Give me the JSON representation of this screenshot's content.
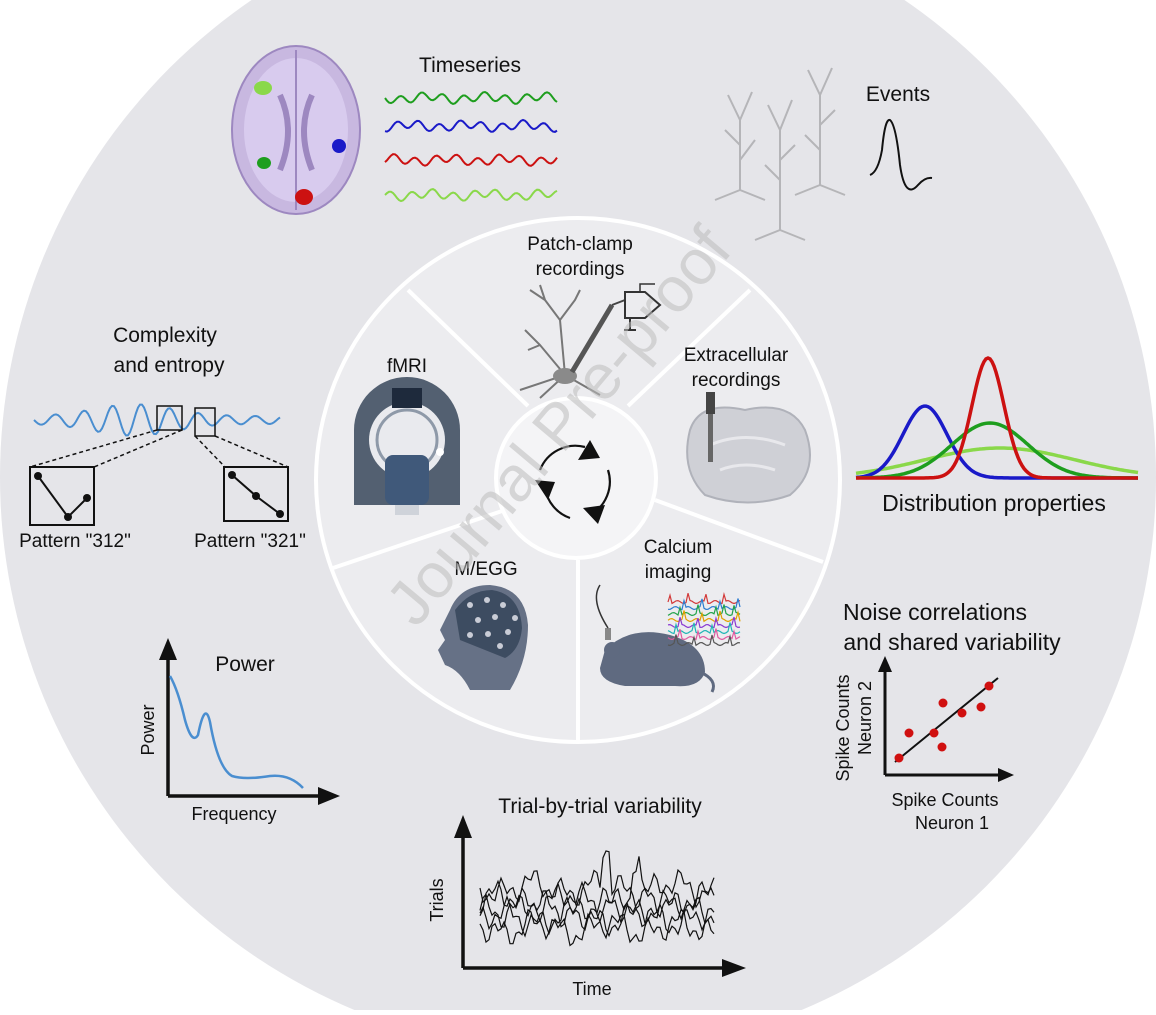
{
  "watermark": "Journal Pre-proof",
  "center_icon": "cycle-arrows-icon",
  "inner_ring": {
    "patch_clamp": {
      "line1": "Patch-clamp",
      "line2": "recordings"
    },
    "extracellular": {
      "line1": "Extracellular",
      "line2": "recordings"
    },
    "calcium": {
      "line1": "Calcium",
      "line2": "imaging"
    },
    "meeg": "M/EGG",
    "fmri": "fMRI"
  },
  "outer_ring": {
    "timeseries": "Timeseries",
    "events": "Events",
    "complexity": {
      "line1": "Complexity",
      "line2": "and entropy",
      "pattern1": "Pattern \"312\"",
      "pattern2": "Pattern \"321\""
    },
    "distribution": "Distribution properties",
    "noise": {
      "line1": "Noise correlations",
      "line2": "and shared variability",
      "ylabel1": "Spike Counts",
      "ylabel2": "Neuron 2",
      "xlabel1": "Spike Counts",
      "xlabel2": "Neuron 1"
    },
    "power": {
      "title": "Power",
      "ylabel": "Power",
      "xlabel": "Frequency"
    },
    "trial": {
      "title": "Trial-by-trial variability",
      "ylabel": "Trials",
      "xlabel": "Time"
    }
  },
  "colors": {
    "outer_disk": "#e5e5e9",
    "inner_disk": "#ececef",
    "ring_lines": "#ffffff",
    "green_dark": "#1e9e1e",
    "blue": "#1a1ac8",
    "red": "#cc1111",
    "green_light": "#8ad84a",
    "signal_blue": "#4a8ed0",
    "scatter_dot": "#d01010"
  },
  "timeseries_colors": [
    "#1e9e1e",
    "#1a1ac8",
    "#cc1111",
    "#8ad84a"
  ]
}
